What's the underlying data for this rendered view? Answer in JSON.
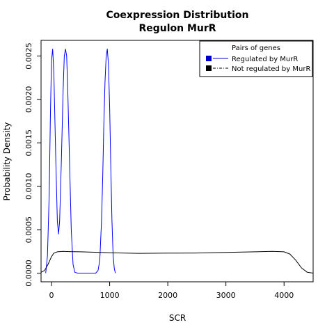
{
  "chart_data": {
    "type": "line",
    "title": "Coexpression Distribution",
    "subtitle": "Regulon MurR",
    "xlabel": "SCR",
    "ylabel": "Probability Density",
    "xlim": [
      -180,
      4500
    ],
    "ylim": [
      -0.0001,
      0.00268
    ],
    "x_ticks": [
      0,
      1000,
      2000,
      3000,
      4000
    ],
    "y_ticks": [
      0.0,
      0.0005,
      0.001,
      0.0015,
      0.002,
      0.0025
    ],
    "y_tick_labels": [
      "0.0000",
      "0.0005",
      "0.0010",
      "0.0015",
      "0.0020",
      "0.0025"
    ],
    "legend": {
      "title": "Pairs of genes",
      "position": "top-right",
      "entries": [
        {
          "label": "Regulated by  MurR",
          "color": "#0000cc",
          "line": "solid"
        },
        {
          "label": "Not regulated by  MurR",
          "color": "#000000",
          "line": "dashdot"
        }
      ]
    },
    "series": [
      {
        "name": "Regulated by  MurR",
        "color": "#0000ff",
        "x": [
          -100,
          -70,
          -40,
          -20,
          0,
          20,
          40,
          70,
          100,
          120,
          140,
          170,
          200,
          220,
          240,
          260,
          280,
          310,
          340,
          370,
          400,
          450,
          500,
          600,
          700,
          760,
          800,
          830,
          860,
          880,
          900,
          920,
          940,
          960,
          980,
          1000,
          1020,
          1040,
          1060,
          1080,
          1100
        ],
        "y": [
          0.0,
          0.0002,
          0.0009,
          0.0018,
          0.00245,
          0.00258,
          0.0023,
          0.0014,
          0.0006,
          0.00045,
          0.0006,
          0.0013,
          0.0021,
          0.0025,
          0.00258,
          0.0025,
          0.0021,
          0.0013,
          0.0005,
          0.0001,
          1e-05,
          0.0,
          0.0,
          0.0,
          0.0,
          0.0,
          3e-05,
          0.00015,
          0.0006,
          0.0011,
          0.0017,
          0.0022,
          0.0025,
          0.00258,
          0.0024,
          0.0019,
          0.0012,
          0.0006,
          0.0002,
          5e-05,
          0.0
        ]
      },
      {
        "name": "Not regulated by  MurR",
        "color": "#000000",
        "x": [
          -180,
          -120,
          -60,
          0,
          40,
          100,
          200,
          300,
          500,
          800,
          1000,
          1500,
          2000,
          2500,
          3000,
          3500,
          3800,
          4000,
          4100,
          4200,
          4300,
          4400,
          4500
        ],
        "y": [
          1e-05,
          3e-05,
          0.0001,
          0.00019,
          0.00023,
          0.000245,
          0.00025,
          0.000248,
          0.000245,
          0.00024,
          0.000235,
          0.000228,
          0.00023,
          0.000232,
          0.000238,
          0.000245,
          0.00025,
          0.000245,
          0.00022,
          0.00015,
          6e-05,
          1e-05,
          0.0
        ]
      }
    ]
  }
}
